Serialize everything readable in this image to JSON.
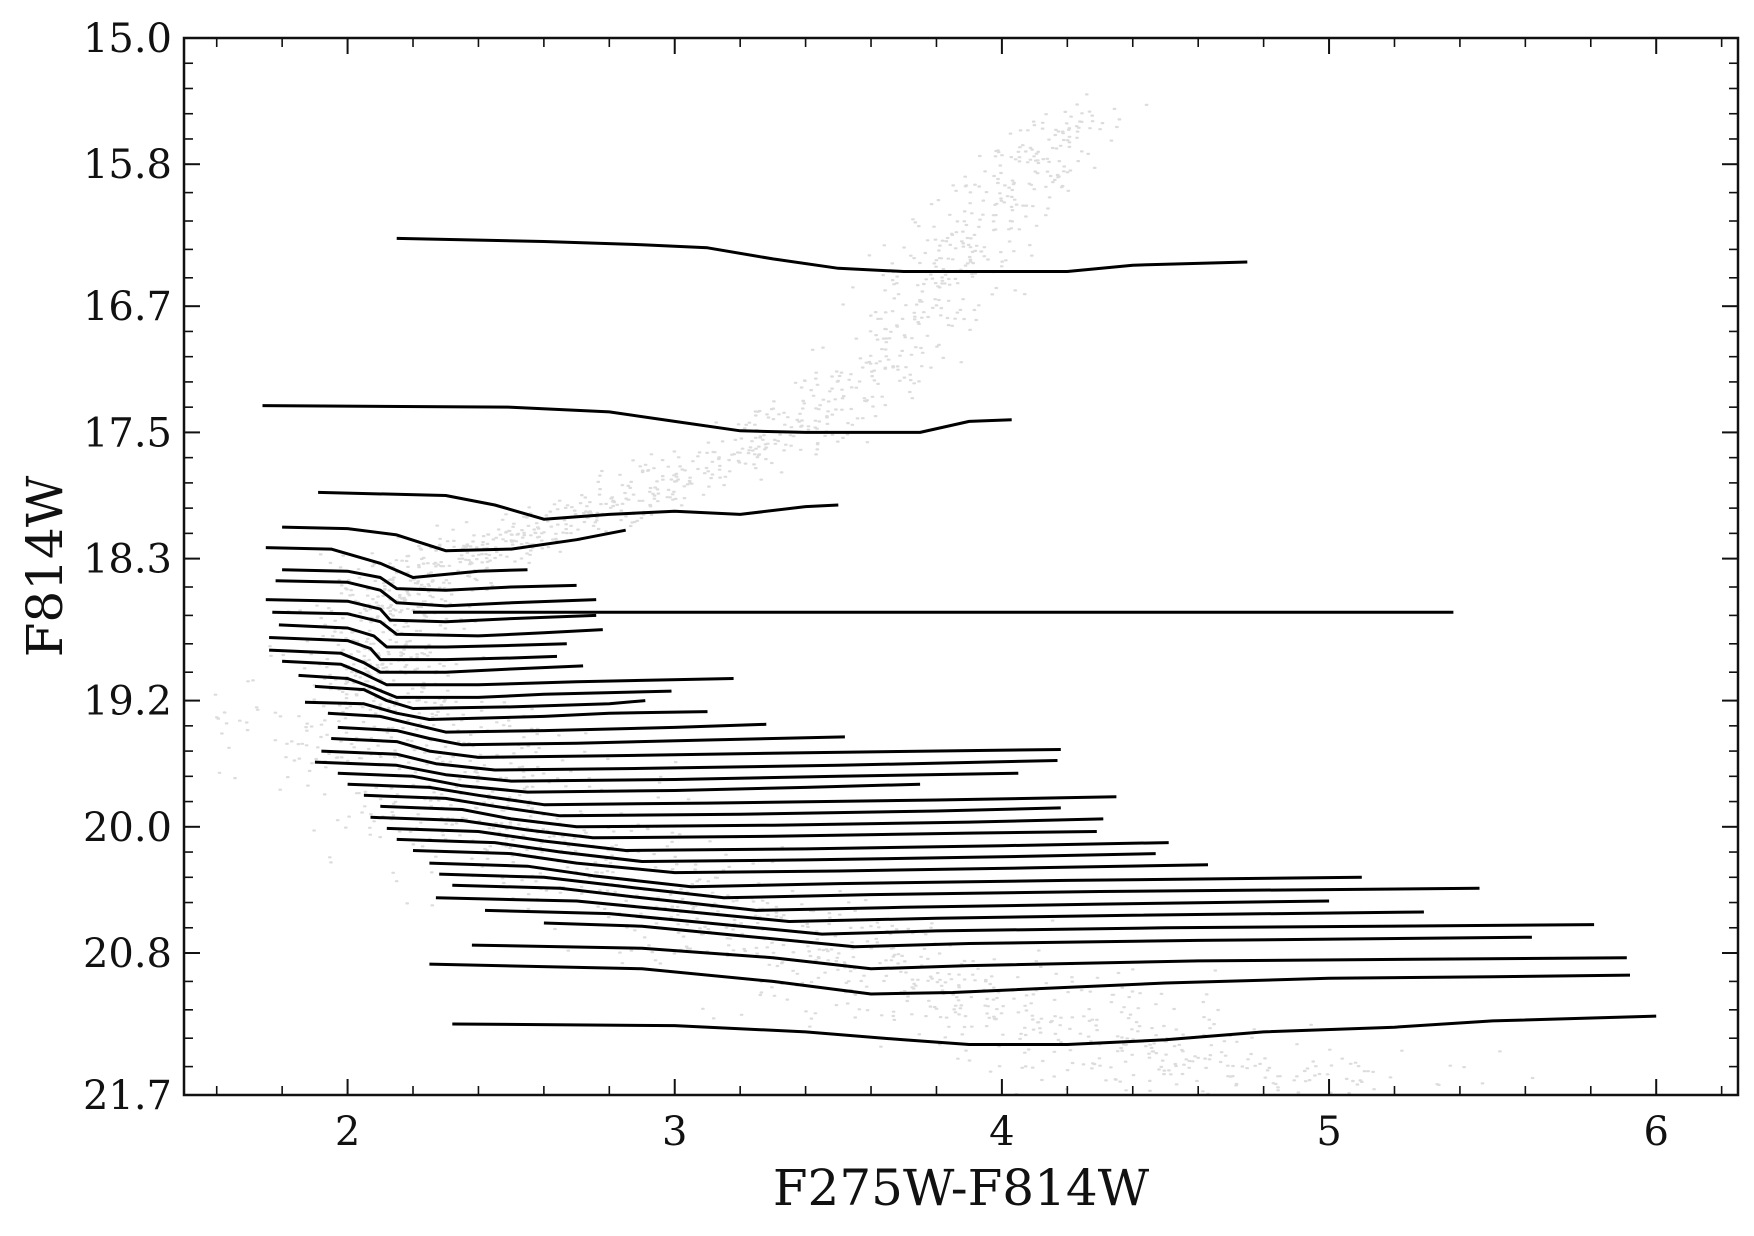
{
  "chart_data": {
    "type": "line",
    "title": "",
    "xlabel": "F275W-F814W",
    "ylabel": "F814W",
    "xlim": [
      1.5,
      6.25
    ],
    "ylim": [
      21.7,
      15.0
    ],
    "y_inverted": true,
    "x_ticks": [
      2,
      3,
      4,
      5,
      6
    ],
    "x_tick_labels": [
      "2",
      "3",
      "4",
      "5",
      "6"
    ],
    "y_ticks": [
      15.0,
      15.8,
      16.7,
      17.5,
      18.3,
      19.2,
      20.0,
      20.8,
      21.7
    ],
    "y_tick_labels": [
      "15.0",
      "15.8",
      "16.7",
      "17.5",
      "18.3",
      "19.2",
      "20.0",
      "20.8",
      "21.7"
    ],
    "grid": false,
    "background_scatter": {
      "description_color": "#9a9a9a"
    },
    "line_color": "#000000",
    "series": [
      {
        "x": [
          2.15,
          2.6,
          2.9,
          3.1,
          3.3,
          3.5,
          3.7,
          3.9,
          4.2,
          4.4,
          4.75
        ],
        "y": [
          16.27,
          16.29,
          16.31,
          16.33,
          16.4,
          16.46,
          16.48,
          16.48,
          16.48,
          16.44,
          16.42
        ]
      },
      {
        "x": [
          1.74,
          2.5,
          2.8,
          3.0,
          3.2,
          3.4,
          3.6,
          3.75,
          3.9,
          4.03
        ],
        "y": [
          17.33,
          17.34,
          17.37,
          17.43,
          17.49,
          17.5,
          17.5,
          17.5,
          17.43,
          17.42
        ]
      },
      {
        "x": [
          1.91,
          2.3,
          2.45,
          2.6,
          2.8,
          3.0,
          3.2,
          3.4,
          3.5
        ],
        "y": [
          17.88,
          17.9,
          17.96,
          18.05,
          18.02,
          18.0,
          18.02,
          17.97,
          17.96
        ]
      },
      {
        "x": [
          1.8,
          2.0,
          2.15,
          2.3,
          2.5,
          2.7,
          2.85
        ],
        "y": [
          18.1,
          18.11,
          18.15,
          18.25,
          18.24,
          18.18,
          18.12
        ]
      },
      {
        "x": [
          1.75,
          1.95,
          2.1,
          2.2,
          2.4,
          2.55
        ],
        "y": [
          18.23,
          18.24,
          18.33,
          18.42,
          18.38,
          18.37
        ]
      },
      {
        "x": [
          1.8,
          2.0,
          2.1,
          2.15,
          2.3,
          2.5,
          2.7
        ],
        "y": [
          18.37,
          18.38,
          18.42,
          18.49,
          18.5,
          18.48,
          18.47
        ]
      },
      {
        "x": [
          1.78,
          2.0,
          2.1,
          2.15,
          2.3,
          2.5,
          2.76
        ],
        "y": [
          18.44,
          18.45,
          18.5,
          18.58,
          18.6,
          18.58,
          18.56
        ]
      },
      {
        "x": [
          1.75,
          2.0,
          2.1,
          2.13,
          2.3,
          2.5,
          2.76
        ],
        "y": [
          18.56,
          18.57,
          18.62,
          18.69,
          18.7,
          18.68,
          18.66
        ]
      },
      {
        "x": [
          2.2,
          5.38
        ],
        "y": [
          18.64,
          18.64
        ]
      },
      {
        "x": [
          1.77,
          2.0,
          2.1,
          2.15,
          2.4,
          2.6,
          2.78
        ],
        "y": [
          18.64,
          18.65,
          18.7,
          18.78,
          18.79,
          18.77,
          18.75
        ]
      },
      {
        "x": [
          1.79,
          2.0,
          2.08,
          2.12,
          2.3,
          2.5,
          2.67
        ],
        "y": [
          18.72,
          18.74,
          18.79,
          18.86,
          18.86,
          18.85,
          18.84
        ]
      },
      {
        "x": [
          1.76,
          2.0,
          2.07,
          2.1,
          2.3,
          2.5,
          2.64
        ],
        "y": [
          18.8,
          18.82,
          18.87,
          18.94,
          18.94,
          18.93,
          18.92
        ]
      },
      {
        "x": [
          1.76,
          1.98,
          2.05,
          2.1,
          2.3,
          2.5,
          2.72
        ],
        "y": [
          18.88,
          18.9,
          18.96,
          19.02,
          19.02,
          19.0,
          18.98
        ]
      },
      {
        "x": [
          1.8,
          1.98,
          2.05,
          2.12,
          2.4,
          2.7,
          3.18
        ],
        "y": [
          18.95,
          18.97,
          19.03,
          19.1,
          19.1,
          19.08,
          19.06
        ]
      },
      {
        "x": [
          1.85,
          2.0,
          2.08,
          2.15,
          2.4,
          2.6,
          2.99
        ],
        "y": [
          19.04,
          19.06,
          19.12,
          19.18,
          19.18,
          19.16,
          19.14
        ]
      },
      {
        "x": [
          1.9,
          2.05,
          2.12,
          2.2,
          2.5,
          2.8,
          2.91
        ],
        "y": [
          19.11,
          19.13,
          19.2,
          19.25,
          19.24,
          19.22,
          19.2
        ]
      },
      {
        "x": [
          1.87,
          2.05,
          2.15,
          2.25,
          2.6,
          2.8,
          3.1
        ],
        "y": [
          19.21,
          19.22,
          19.28,
          19.32,
          19.3,
          19.28,
          19.27
        ]
      },
      {
        "x": [
          1.94,
          2.1,
          2.2,
          2.3,
          2.6,
          3.0,
          3.28
        ],
        "y": [
          19.28,
          19.3,
          19.35,
          19.4,
          19.39,
          19.37,
          19.35
        ]
      },
      {
        "x": [
          1.97,
          2.15,
          2.25,
          2.35,
          2.7,
          3.1,
          3.52
        ],
        "y": [
          19.37,
          19.39,
          19.44,
          19.48,
          19.47,
          19.45,
          19.43
        ]
      },
      {
        "x": [
          1.95,
          2.15,
          2.25,
          2.4,
          2.8,
          3.4,
          4.18
        ],
        "y": [
          19.44,
          19.46,
          19.52,
          19.56,
          19.55,
          19.53,
          19.51
        ]
      },
      {
        "x": [
          1.92,
          2.15,
          2.27,
          2.45,
          2.9,
          3.5,
          4.17
        ],
        "y": [
          19.52,
          19.54,
          19.6,
          19.64,
          19.63,
          19.61,
          19.58
        ]
      },
      {
        "x": [
          1.9,
          2.15,
          2.3,
          2.5,
          3.0,
          3.5,
          4.05
        ],
        "y": [
          19.59,
          19.61,
          19.67,
          19.71,
          19.7,
          19.68,
          19.66
        ]
      },
      {
        "x": [
          1.97,
          2.2,
          2.35,
          2.55,
          3.0,
          3.4,
          3.75
        ],
        "y": [
          19.66,
          19.68,
          19.74,
          19.78,
          19.77,
          19.75,
          19.73
        ]
      },
      {
        "x": [
          2.0,
          2.25,
          2.4,
          2.6,
          3.1,
          3.8,
          4.35
        ],
        "y": [
          19.73,
          19.75,
          19.8,
          19.86,
          19.85,
          19.83,
          19.81
        ]
      },
      {
        "x": [
          2.05,
          2.3,
          2.45,
          2.65,
          3.2,
          3.8,
          4.18
        ],
        "y": [
          19.8,
          19.82,
          19.87,
          19.93,
          19.92,
          19.9,
          19.88
        ]
      },
      {
        "x": [
          2.1,
          2.35,
          2.5,
          2.7,
          3.3,
          3.9,
          4.31
        ],
        "y": [
          19.87,
          19.89,
          19.95,
          20.0,
          19.99,
          19.97,
          19.95
        ]
      },
      {
        "x": [
          2.07,
          2.35,
          2.55,
          2.75,
          3.3,
          3.9,
          4.29
        ],
        "y": [
          19.94,
          19.96,
          20.02,
          20.07,
          20.06,
          20.04,
          20.03
        ]
      },
      {
        "x": [
          2.12,
          2.4,
          2.6,
          2.85,
          3.4,
          4.0,
          4.51
        ],
        "y": [
          20.01,
          20.03,
          20.09,
          20.15,
          20.14,
          20.12,
          20.1
        ]
      },
      {
        "x": [
          2.15,
          2.45,
          2.65,
          2.9,
          3.4,
          4.0,
          4.47
        ],
        "y": [
          20.08,
          20.1,
          20.16,
          20.22,
          20.21,
          20.19,
          20.17
        ]
      },
      {
        "x": [
          2.2,
          2.5,
          2.7,
          3.0,
          3.5,
          4.1,
          4.63
        ],
        "y": [
          20.15,
          20.17,
          20.23,
          20.29,
          20.28,
          20.26,
          20.24
        ]
      },
      {
        "x": [
          2.25,
          2.55,
          2.75,
          3.05,
          3.5,
          4.2,
          5.1
        ],
        "y": [
          20.23,
          20.25,
          20.31,
          20.38,
          20.36,
          20.34,
          20.32
        ]
      },
      {
        "x": [
          2.28,
          2.6,
          2.85,
          3.15,
          3.6,
          4.3,
          5.46
        ],
        "y": [
          20.3,
          20.32,
          20.38,
          20.45,
          20.43,
          20.41,
          20.39
        ]
      },
      {
        "x": [
          2.32,
          2.65,
          2.9,
          3.25,
          3.7,
          4.3,
          5.0
        ],
        "y": [
          20.37,
          20.39,
          20.45,
          20.53,
          20.51,
          20.49,
          20.47
        ]
      },
      {
        "x": [
          2.27,
          2.7,
          3.0,
          3.35,
          3.8,
          4.4,
          5.29
        ],
        "y": [
          20.45,
          20.47,
          20.53,
          20.6,
          20.58,
          20.56,
          20.54
        ]
      },
      {
        "x": [
          2.42,
          2.8,
          3.1,
          3.45,
          3.8,
          4.5,
          5.81
        ],
        "y": [
          20.53,
          20.55,
          20.61,
          20.68,
          20.66,
          20.64,
          20.62
        ]
      },
      {
        "x": [
          2.6,
          2.9,
          3.2,
          3.55,
          3.9,
          4.6,
          5.62
        ],
        "y": [
          20.61,
          20.63,
          20.69,
          20.76,
          20.74,
          20.72,
          20.7
        ]
      },
      {
        "x": [
          2.38,
          2.9,
          3.3,
          3.6,
          3.9,
          4.6,
          5.91
        ],
        "y": [
          20.75,
          20.77,
          20.83,
          20.9,
          20.88,
          20.85,
          20.83
        ]
      },
      {
        "x": [
          2.25,
          2.9,
          3.3,
          3.6,
          3.85,
          4.5,
          5.0,
          5.5,
          5.92
        ],
        "y": [
          20.87,
          20.9,
          20.98,
          21.06,
          21.05,
          20.99,
          20.96,
          20.95,
          20.94
        ]
      },
      {
        "x": [
          2.32,
          3.0,
          3.4,
          3.7,
          3.9,
          4.2,
          4.5,
          4.8,
          5.2,
          5.5,
          6.0
        ],
        "y": [
          21.25,
          21.26,
          21.3,
          21.35,
          21.38,
          21.38,
          21.35,
          21.3,
          21.27,
          21.23,
          21.2
        ]
      }
    ]
  }
}
